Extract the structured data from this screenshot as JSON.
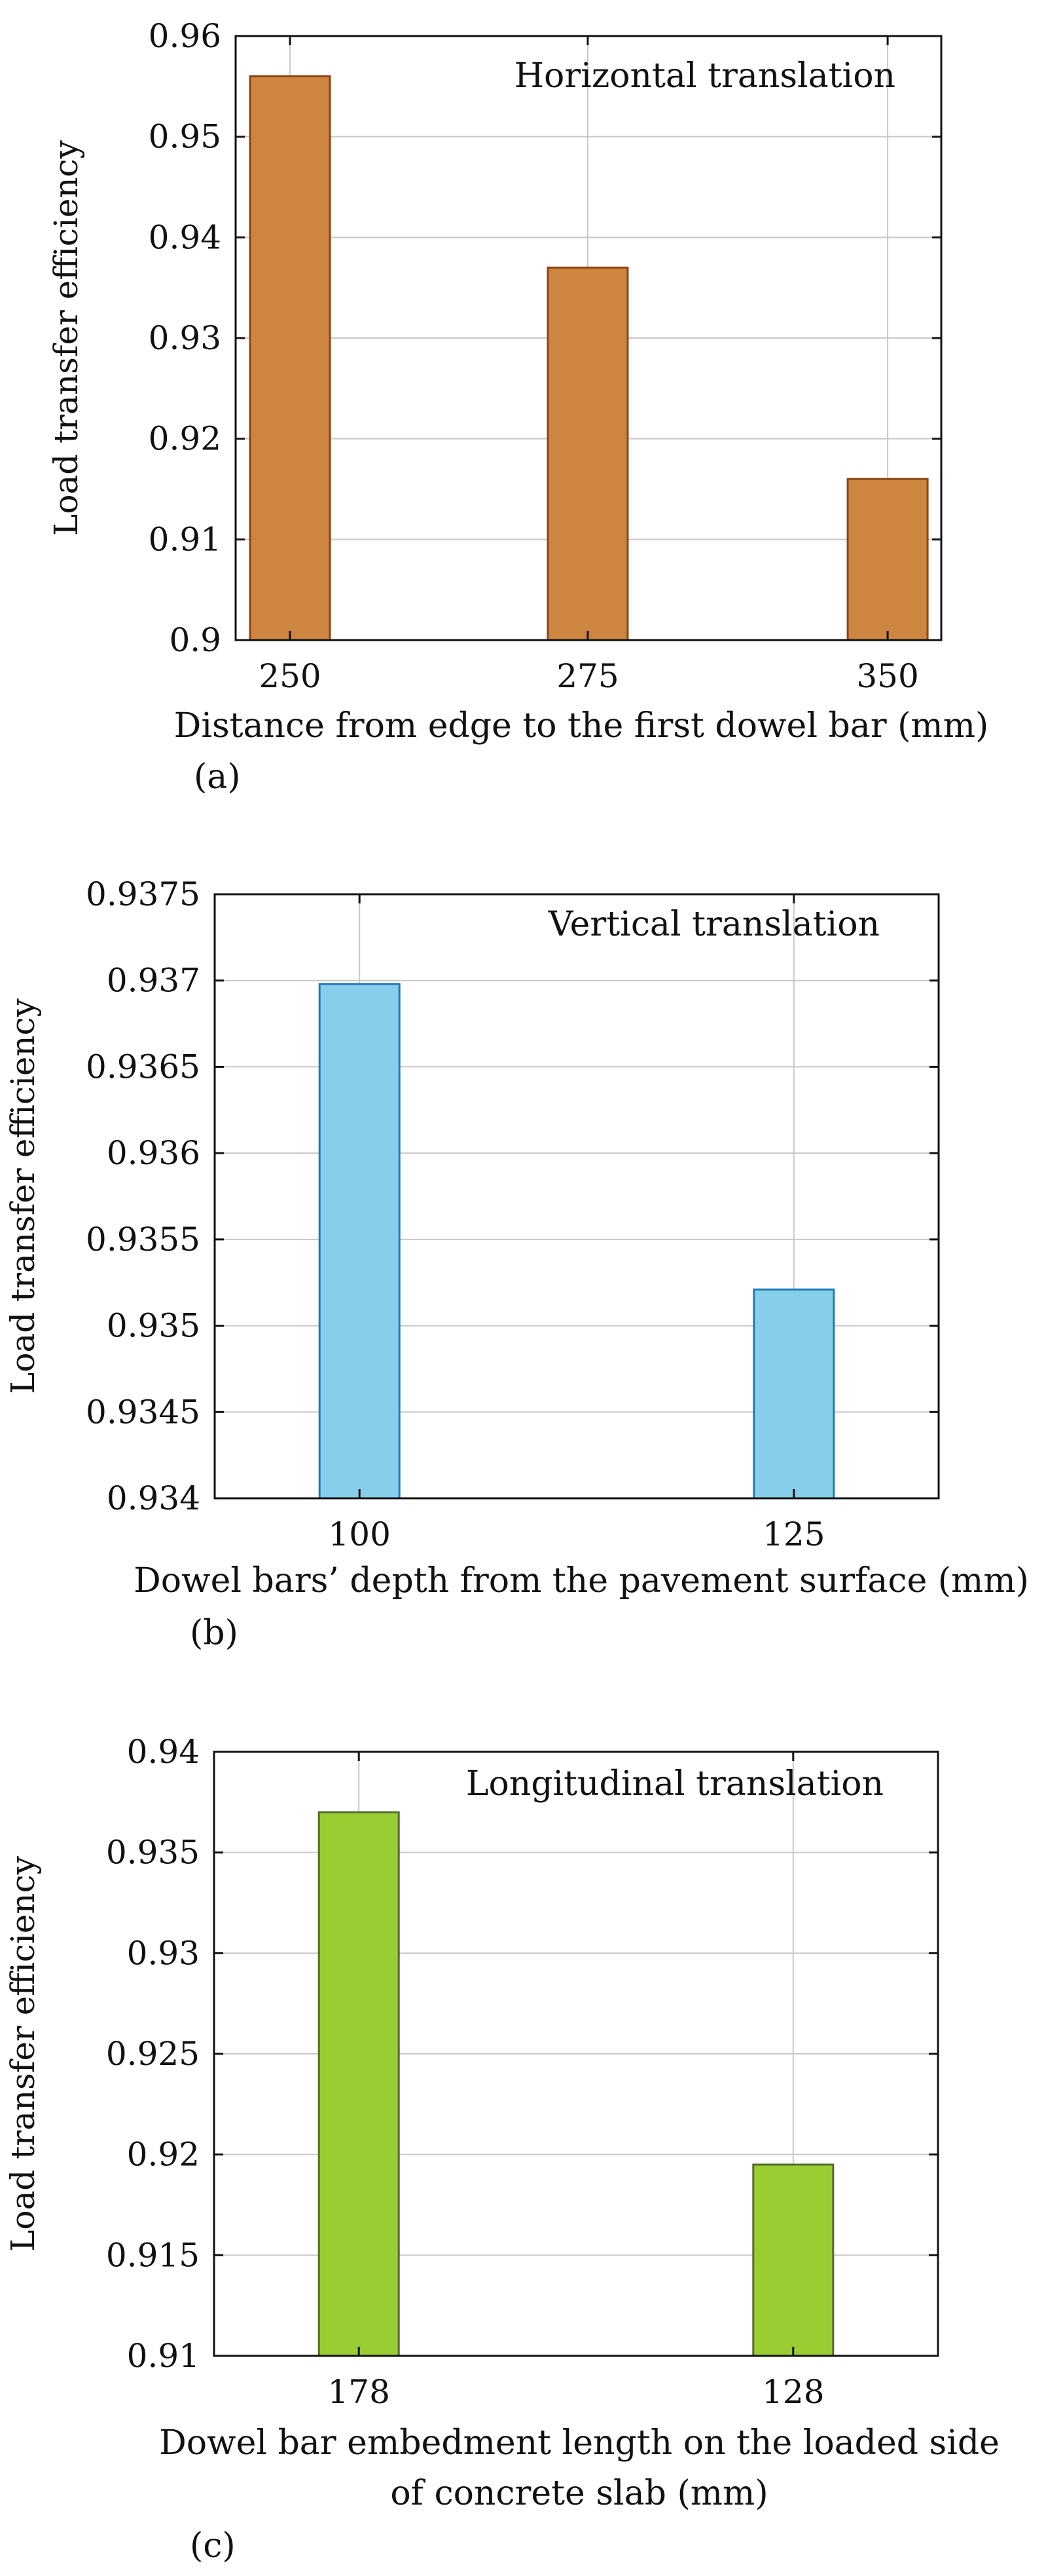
{
  "chart_data": [
    {
      "type": "bar",
      "panel_label": "(a)",
      "annotation": "Horizontal translation",
      "title": "",
      "xlabel": [
        "Distance from edge to the first dowel bar (mm)"
      ],
      "ylabel": "Load transfer efficiency",
      "categories": [
        "250",
        "275",
        "350"
      ],
      "values": [
        0.956,
        0.937,
        0.916
      ],
      "ylim": [
        0.9,
        0.96
      ],
      "yticks": [
        "0.9",
        "0.91",
        "0.92",
        "0.93",
        "0.94",
        "0.95",
        "0.96"
      ],
      "grid": true,
      "color": "#CD853F",
      "stroke": "#8B4513"
    },
    {
      "type": "bar",
      "panel_label": "(b)",
      "annotation": "Vertical translation",
      "title": "",
      "xlabel": [
        "Dowel bars’ depth from the pavement surface (mm)"
      ],
      "ylabel": "Load transfer efficiency",
      "categories": [
        "100",
        "125"
      ],
      "values": [
        0.93698,
        0.93521
      ],
      "ylim": [
        0.934,
        0.9375
      ],
      "yticks": [
        "0.934",
        "0.9345",
        "0.935",
        "0.9355",
        "0.936",
        "0.9365",
        "0.937",
        "0.9375"
      ],
      "grid": true,
      "color": "#87CEEB",
      "stroke": "#1E7BB8"
    },
    {
      "type": "bar",
      "panel_label": "(c)",
      "annotation": "Longitudinal translation",
      "title": "",
      "xlabel": [
        "Dowel bar embedment length on the loaded side",
        "of concrete slab (mm)"
      ],
      "ylabel": "Load transfer efficiency",
      "categories": [
        "178",
        "128"
      ],
      "values": [
        0.937,
        0.9195
      ],
      "ylim": [
        0.91,
        0.94
      ],
      "yticks": [
        "0.91",
        "0.915",
        "0.92",
        "0.925",
        "0.93",
        "0.935",
        "0.94"
      ],
      "grid": true,
      "color": "#9ACD32",
      "stroke": "#556B2F"
    }
  ]
}
